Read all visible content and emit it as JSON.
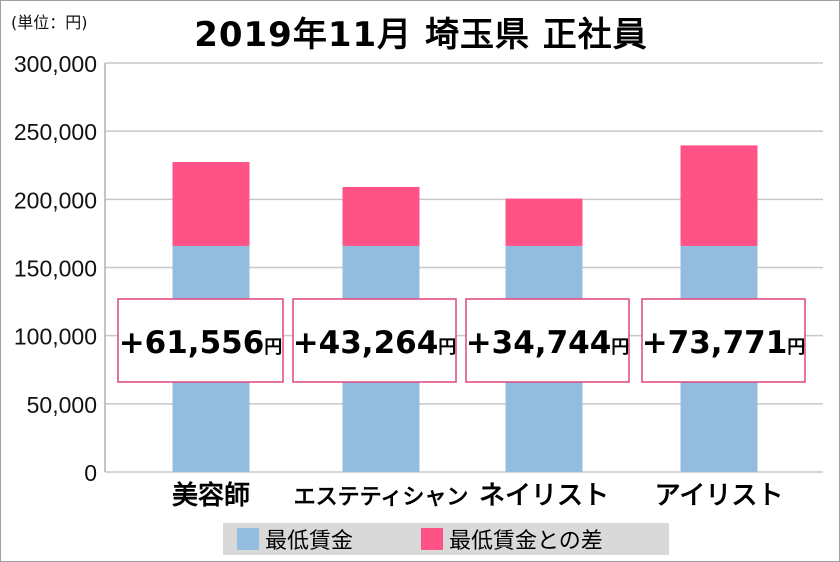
{
  "chart_data": {
    "type": "bar",
    "stacked": true,
    "title": "2019年11月 埼玉県 正社員",
    "unit_label": "(単位：円)",
    "categories": [
      "美容師",
      "エステティシャン",
      "ネイリスト",
      "アイリスト"
    ],
    "series": [
      {
        "name": "最低賃金",
        "color": "#93BCDE",
        "values": [
          165800,
          165800,
          165800,
          165800
        ]
      },
      {
        "name": "最低賃金との差",
        "color": "#FF5388",
        "values": [
          61556,
          43264,
          34744,
          73771
        ]
      }
    ],
    "data_labels": [
      "+61,556",
      "+43,264",
      "+34,744",
      "+73,771"
    ],
    "data_label_unit": "円",
    "ylim": [
      0,
      300000
    ],
    "yticks": [
      "0",
      "50,000",
      "100,000",
      "150,000",
      "200,000",
      "250,000",
      "300,000"
    ],
    "ytick_values": [
      0,
      50000,
      100000,
      150000,
      200000,
      250000,
      300000
    ],
    "grid": true,
    "legend_position": "bottom"
  }
}
